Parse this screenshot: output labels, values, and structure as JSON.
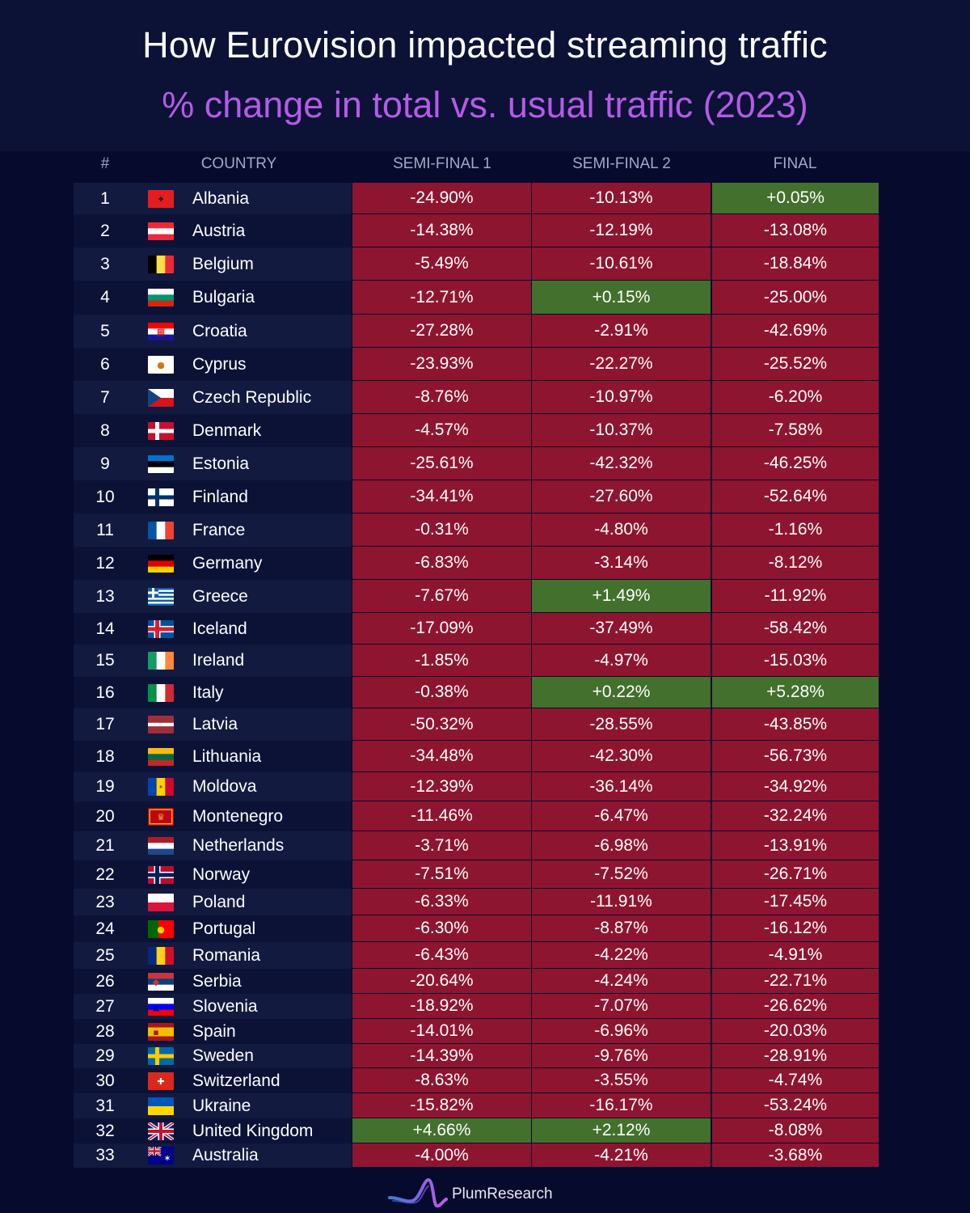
{
  "title": "How Eurovision impacted streaming traffic",
  "subtitle": "% change in total vs. usual traffic (2023)",
  "columns": {
    "rank": "#",
    "country": "COUNTRY",
    "sf1": "SEMI-FINAL 1",
    "sf2": "SEMI-FINAL 2",
    "final": "FINAL"
  },
  "colors": {
    "negative": "#8e1530",
    "positive": "#43702c",
    "row_odd": "#121a3f",
    "row_even": "#0b1236",
    "background": "#060a2c",
    "subtitle": "#b65ae8"
  },
  "footer": {
    "brand": "PlumResearch"
  },
  "chart_data": {
    "type": "table",
    "title": "How Eurovision impacted streaming traffic",
    "subtitle": "% change in total vs. usual traffic (2023)",
    "columns": [
      "#",
      "COUNTRY",
      "SEMI-FINAL 1",
      "SEMI-FINAL 2",
      "FINAL"
    ],
    "rows": [
      {
        "rank": "1",
        "country": "Albania",
        "flag": "flag-albania",
        "sf1": "-24.90%",
        "sf2": "-10.13%",
        "final": "+0.05%"
      },
      {
        "rank": "2",
        "country": "Austria",
        "flag": "flag-austria",
        "sf1": "-14.38%",
        "sf2": "-12.19%",
        "final": "-13.08%"
      },
      {
        "rank": "3",
        "country": "Belgium",
        "flag": "flag-belgium",
        "sf1": "-5.49%",
        "sf2": "-10.61%",
        "final": "-18.84%"
      },
      {
        "rank": "4",
        "country": "Bulgaria",
        "flag": "flag-bulgaria",
        "sf1": "-12.71%",
        "sf2": "+0.15%",
        "final": "-25.00%"
      },
      {
        "rank": "5",
        "country": "Croatia",
        "flag": "flag-croatia",
        "sf1": "-27.28%",
        "sf2": "-2.91%",
        "final": "-42.69%"
      },
      {
        "rank": "6",
        "country": "Cyprus",
        "flag": "flag-cyprus",
        "sf1": "-23.93%",
        "sf2": "-22.27%",
        "final": "-25.52%"
      },
      {
        "rank": "7",
        "country": "Czech Republic",
        "flag": "flag-czech-republic",
        "sf1": "-8.76%",
        "sf2": "-10.97%",
        "final": "-6.20%"
      },
      {
        "rank": "8",
        "country": "Denmark",
        "flag": "flag-denmark",
        "sf1": "-4.57%",
        "sf2": "-10.37%",
        "final": "-7.58%"
      },
      {
        "rank": "9",
        "country": "Estonia",
        "flag": "flag-estonia",
        "sf1": "-25.61%",
        "sf2": "-42.32%",
        "final": "-46.25%"
      },
      {
        "rank": "10",
        "country": "Finland",
        "flag": "flag-finland",
        "sf1": "-34.41%",
        "sf2": "-27.60%",
        "final": "-52.64%"
      },
      {
        "rank": "11",
        "country": "France",
        "flag": "flag-france",
        "sf1": "-0.31%",
        "sf2": "-4.80%",
        "final": "-1.16%"
      },
      {
        "rank": "12",
        "country": "Germany",
        "flag": "flag-germany",
        "sf1": "-6.83%",
        "sf2": "-3.14%",
        "final": "-8.12%"
      },
      {
        "rank": "13",
        "country": "Greece",
        "flag": "flag-greece",
        "sf1": "-7.67%",
        "sf2": "+1.49%",
        "final": "-11.92%"
      },
      {
        "rank": "14",
        "country": "Iceland",
        "flag": "flag-iceland",
        "sf1": "-17.09%",
        "sf2": "-37.49%",
        "final": "-58.42%"
      },
      {
        "rank": "15",
        "country": "Ireland",
        "flag": "flag-ireland",
        "sf1": "-1.85%",
        "sf2": "-4.97%",
        "final": "-15.03%"
      },
      {
        "rank": "16",
        "country": "Italy",
        "flag": "flag-italy",
        "sf1": "-0.38%",
        "sf2": "+0.22%",
        "final": "+5.28%"
      },
      {
        "rank": "17",
        "country": "Latvia",
        "flag": "flag-latvia",
        "sf1": "-50.32%",
        "sf2": "-28.55%",
        "final": "-43.85%"
      },
      {
        "rank": "18",
        "country": "Lithuania",
        "flag": "flag-lithuania",
        "sf1": "-34.48%",
        "sf2": "-42.30%",
        "final": "-56.73%"
      },
      {
        "rank": "19",
        "country": "Moldova",
        "flag": "flag-moldova",
        "sf1": "-12.39%",
        "sf2": "-36.14%",
        "final": "-34.92%"
      },
      {
        "rank": "20",
        "country": "Montenegro",
        "flag": "flag-montenegro",
        "sf1": "-11.46%",
        "sf2": "-6.47%",
        "final": "-32.24%"
      },
      {
        "rank": "21",
        "country": "Netherlands",
        "flag": "flag-netherlands",
        "sf1": "-3.71%",
        "sf2": "-6.98%",
        "final": "-13.91%"
      },
      {
        "rank": "22",
        "country": "Norway",
        "flag": "flag-norway",
        "sf1": "-7.51%",
        "sf2": "-7.52%",
        "final": "-26.71%"
      },
      {
        "rank": "23",
        "country": "Poland",
        "flag": "flag-poland",
        "sf1": "-6.33%",
        "sf2": "-11.91%",
        "final": "-17.45%"
      },
      {
        "rank": "24",
        "country": "Portugal",
        "flag": "flag-portugal",
        "sf1": "-6.30%",
        "sf2": "-8.87%",
        "final": "-16.12%"
      },
      {
        "rank": "25",
        "country": "Romania",
        "flag": "flag-romania",
        "sf1": "-6.43%",
        "sf2": "-4.22%",
        "final": "-4.91%"
      },
      {
        "rank": "26",
        "country": "Serbia",
        "flag": "flag-serbia",
        "sf1": "-20.64%",
        "sf2": "-4.24%",
        "final": "-22.71%"
      },
      {
        "rank": "27",
        "country": "Slovenia",
        "flag": "flag-slovenia",
        "sf1": "-18.92%",
        "sf2": "-7.07%",
        "final": "-26.62%"
      },
      {
        "rank": "28",
        "country": "Spain",
        "flag": "flag-spain",
        "sf1": "-14.01%",
        "sf2": "-6.96%",
        "final": "-20.03%"
      },
      {
        "rank": "29",
        "country": "Sweden",
        "flag": "flag-sweden",
        "sf1": "-14.39%",
        "sf2": "-9.76%",
        "final": "-28.91%"
      },
      {
        "rank": "30",
        "country": "Switzerland",
        "flag": "flag-switzerland",
        "sf1": "-8.63%",
        "sf2": "-3.55%",
        "final": "-4.74%"
      },
      {
        "rank": "31",
        "country": "Ukraine",
        "flag": "flag-ukraine",
        "sf1": "-15.82%",
        "sf2": "-16.17%",
        "final": "-53.24%"
      },
      {
        "rank": "32",
        "country": "United Kingdom",
        "flag": "flag-united-kingdom",
        "sf1": "+4.66%",
        "sf2": "+2.12%",
        "final": "-8.08%"
      },
      {
        "rank": "33",
        "country": "Australia",
        "flag": "flag-australia",
        "sf1": "-4.00%",
        "sf2": "-4.21%",
        "final": "-3.68%"
      }
    ]
  }
}
